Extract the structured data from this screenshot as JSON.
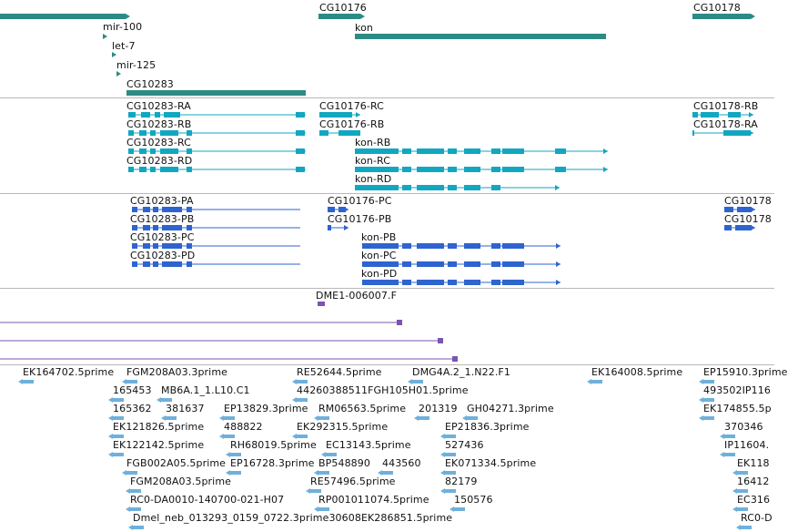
{
  "colors": {
    "gene": "#2d8b86",
    "transcript_rb": "#12a7c0",
    "transcript_rp": "#2e64cf",
    "alignment": "#7b55b0",
    "est": "#6fb0db",
    "divider": "#b8b8b8"
  },
  "tracks": {
    "genes": {
      "labels": [
        "CG10176",
        "CG10178",
        "mir-100",
        "kon",
        "let-7",
        "mir-125",
        "CG10283"
      ]
    },
    "transcripts_r": {
      "labels": [
        "CG10283-RA",
        "CG10176-RC",
        "CG10178-RB",
        "CG10283-RB",
        "CG10176-RB",
        "CG10178-RA",
        "CG10283-RC",
        "kon-RB",
        "CG10283-RD",
        "kon-RC",
        "kon-RD"
      ]
    },
    "transcripts_p": {
      "labels": [
        "CG10283-PA",
        "CG10176-PC",
        "CG10178",
        "CG10283-PB",
        "CG10176-PB",
        "CG10178",
        "CG10283-PC",
        "kon-PB",
        "CG10283-PD",
        "kon-PC",
        "kon-PD"
      ]
    },
    "alignments": {
      "labels": [
        "DME1-006007.F"
      ]
    },
    "ests": {
      "labels": [
        "EK164702.5prime",
        "FGM208A03.3prime",
        "RE52644.5prime",
        "DMG4A.2_1.N22.F1",
        "EK164008.5prime",
        "EP15910.3prime",
        "165453",
        "MB6A.1_1.L10.C1",
        "44260388511FGH105H01.5prime",
        "493502IP116",
        "165362",
        "381637",
        "EP13829.3prime",
        "RM06563.5prime",
        "201319",
        "GH04271.3prime",
        "EK174855.5p",
        "EK121826.5prime",
        "488822",
        "EK292315.5prime",
        "EP21836.3prime",
        "370346",
        "EK122142.5prime",
        "RH68019.5prime",
        "EC13143.5prime",
        "527436",
        "IP11604.",
        "FGB002A05.5prime",
        "EP16728.3prime",
        "BP548890",
        "443560",
        "EK071334.5prime",
        "EK118",
        "FGM208A03.5prime",
        "RE57496.5prime",
        "82179",
        "16412",
        "RC0-DA0010-140700-021-H07",
        "RP001011074.5prime",
        "150576",
        "EC316",
        "Dmel_neb_013293_0159_0722.3prime30608EK286851.5prime",
        "RC0-D"
      ]
    }
  }
}
